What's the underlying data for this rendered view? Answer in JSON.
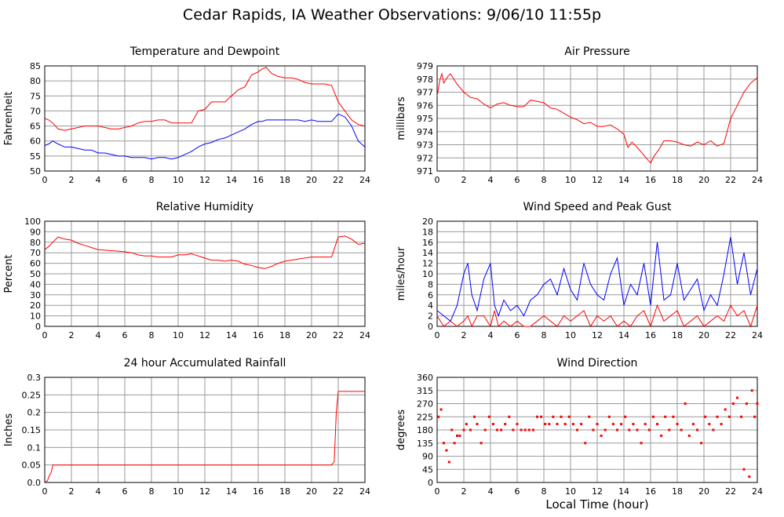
{
  "page": {
    "title": "Cedar Rapids, IA Weather Observations: 9/06/10 11:55p",
    "xlabel": "Local Time (hour)"
  },
  "chart_data": [
    {
      "id": "temp",
      "type": "line",
      "title": "Temperature and Dewpoint",
      "ylabel": "Fahrenheit",
      "xlim": [
        0,
        24
      ],
      "ylim": [
        50,
        85
      ],
      "x_ticks": [
        0,
        2,
        4,
        6,
        8,
        10,
        12,
        14,
        16,
        18,
        20,
        22,
        24
      ],
      "y_ticks": [
        50,
        55,
        60,
        65,
        70,
        75,
        80,
        85
      ],
      "grid": true,
      "x": [
        0,
        0.3,
        0.6,
        1,
        1.5,
        2,
        2.5,
        3,
        3.5,
        4,
        4.5,
        5,
        5.5,
        6,
        6.5,
        7,
        7.5,
        8,
        8.5,
        9,
        9.5,
        10,
        10.5,
        11,
        11.5,
        12,
        12.5,
        13,
        13.5,
        14,
        14.5,
        15,
        15.5,
        16,
        16.3,
        16.6,
        17,
        17.5,
        18,
        18.5,
        19,
        19.5,
        20,
        20.5,
        21,
        21.5,
        22,
        22.5,
        23,
        23.5,
        24
      ],
      "series": [
        {
          "color": "#ff0000",
          "values": [
            67.5,
            67,
            66,
            64,
            63.5,
            64,
            64.5,
            65,
            65,
            65,
            64.5,
            64,
            64,
            64.5,
            65,
            66,
            66.5,
            66.5,
            67,
            67,
            66,
            66,
            66,
            66,
            70,
            70.5,
            73,
            73,
            73,
            75,
            77,
            78,
            82,
            83,
            84,
            84.5,
            82.5,
            81.5,
            81,
            81,
            80.5,
            79.5,
            79,
            79,
            79,
            78.5,
            73,
            70,
            67,
            65.5,
            65
          ]
        },
        {
          "color": "#0000ff",
          "values": [
            58.5,
            59,
            60,
            59,
            58,
            58,
            57.5,
            57,
            57,
            56,
            56,
            55.5,
            55,
            55,
            54.5,
            54.5,
            54.5,
            54,
            54.5,
            54.5,
            54,
            54.5,
            55.5,
            56.5,
            58,
            59,
            59.5,
            60.5,
            61,
            62,
            63,
            64,
            65.5,
            66.5,
            66.5,
            67,
            67,
            67,
            67,
            67,
            67,
            66.5,
            67,
            66.5,
            66.5,
            66.5,
            69,
            68,
            65,
            60,
            58
          ]
        }
      ]
    },
    {
      "id": "pressure",
      "type": "line",
      "title": "Air Pressure",
      "ylabel": "millibars",
      "xlim": [
        0,
        24
      ],
      "ylim": [
        971,
        979
      ],
      "x_ticks": [
        0,
        2,
        4,
        6,
        8,
        10,
        12,
        14,
        16,
        18,
        20,
        22,
        24
      ],
      "y_ticks": [
        971,
        972,
        973,
        974,
        975,
        976,
        977,
        978,
        979
      ],
      "grid": true,
      "x": [
        0,
        0.2,
        0.35,
        0.5,
        0.8,
        1,
        1.5,
        2,
        2.5,
        3,
        3.5,
        4,
        4.5,
        5,
        5.5,
        6,
        6.5,
        7,
        7.5,
        8,
        8.5,
        9,
        9.5,
        10,
        10.5,
        11,
        11.5,
        12,
        12.5,
        13,
        13.5,
        14,
        14.3,
        14.6,
        15,
        15.5,
        16,
        16.3,
        16.6,
        17,
        17.5,
        18,
        18.5,
        19,
        19.5,
        20,
        20.5,
        21,
        21.5,
        22,
        22.5,
        23,
        23.5,
        24
      ],
      "series": [
        {
          "color": "#ff0000",
          "values": [
            976.7,
            977.9,
            978.4,
            977.7,
            978.2,
            978.4,
            977.6,
            977,
            976.6,
            976.5,
            976.1,
            975.8,
            976.1,
            976.2,
            976,
            975.9,
            975.9,
            976.4,
            976.3,
            976.2,
            975.8,
            975.7,
            975.4,
            975.1,
            974.9,
            974.6,
            974.7,
            974.4,
            974.4,
            974.5,
            974.2,
            973.8,
            972.8,
            973.2,
            972.8,
            972.2,
            971.6,
            972.2,
            972.6,
            973.3,
            973.3,
            973.2,
            973,
            972.9,
            973.2,
            973,
            973.3,
            972.9,
            973.1,
            975,
            976,
            977,
            977.7,
            978.1
          ]
        }
      ]
    },
    {
      "id": "rh",
      "type": "line",
      "title": "Relative Humidity",
      "ylabel": "Percent",
      "xlim": [
        0,
        24
      ],
      "ylim": [
        0,
        100
      ],
      "x_ticks": [
        0,
        2,
        4,
        6,
        8,
        10,
        12,
        14,
        16,
        18,
        20,
        22,
        24
      ],
      "y_ticks": [
        0,
        10,
        20,
        30,
        40,
        50,
        60,
        70,
        80,
        90,
        100
      ],
      "grid": true,
      "x": [
        0,
        0.3,
        0.6,
        1,
        1.5,
        2,
        2.5,
        3,
        3.5,
        4,
        5,
        6,
        6.5,
        7,
        7.5,
        8,
        8.5,
        9,
        9.5,
        10,
        10.5,
        11,
        11.5,
        12,
        12.5,
        13,
        13.5,
        14,
        14.5,
        15,
        15.5,
        16,
        16.5,
        17,
        17.5,
        18,
        18.5,
        19,
        19.5,
        20,
        20.5,
        21,
        21.5,
        22,
        22.5,
        23,
        23.5,
        24
      ],
      "series": [
        {
          "color": "#ff0000",
          "values": [
            73,
            76,
            80,
            85,
            83,
            82,
            79,
            77,
            75,
            73,
            72,
            71,
            70,
            68,
            67,
            67,
            66,
            66,
            66,
            68,
            68,
            69,
            67,
            65,
            63,
            63,
            62,
            63,
            62,
            59,
            58,
            56,
            55,
            57,
            60,
            62,
            63,
            64,
            65,
            66,
            66,
            66,
            66,
            85,
            86,
            83,
            78,
            79
          ]
        }
      ]
    },
    {
      "id": "wind",
      "type": "line",
      "title": "Wind Speed and Peak Gust",
      "ylabel": "miles/hour",
      "xlim": [
        0,
        24
      ],
      "ylim": [
        0,
        20
      ],
      "x_ticks": [
        0,
        2,
        4,
        6,
        8,
        10,
        12,
        14,
        16,
        18,
        20,
        22,
        24
      ],
      "y_ticks": [
        0,
        2,
        4,
        6,
        8,
        10,
        12,
        14,
        16,
        18,
        20
      ],
      "grid": true,
      "x": [
        0,
        0.5,
        1,
        1.5,
        2,
        2.3,
        2.6,
        3,
        3.5,
        4,
        4.3,
        4.6,
        5,
        5.5,
        6,
        6.5,
        7,
        7.5,
        8,
        8.5,
        9,
        9.5,
        10,
        10.5,
        11,
        11.5,
        12,
        12.5,
        13,
        13.5,
        14,
        14.5,
        15,
        15.5,
        16,
        16.5,
        17,
        17.5,
        18,
        18.5,
        19,
        19.5,
        20,
        20.5,
        21,
        21.5,
        22,
        22.5,
        23,
        23.5,
        24
      ],
      "series": [
        {
          "color": "#0000ff",
          "values": [
            3,
            2,
            1,
            4,
            10,
            12,
            6,
            3,
            9,
            12,
            4,
            2,
            5,
            3,
            4,
            2,
            5,
            6,
            8,
            9,
            6,
            11,
            7,
            5,
            12,
            8,
            6,
            5,
            10,
            13,
            4,
            8,
            6,
            12,
            4,
            16,
            5,
            6,
            12,
            5,
            7,
            9,
            3,
            6,
            4,
            10,
            17,
            8,
            14,
            6,
            11
          ]
        },
        {
          "color": "#ff0000",
          "values": [
            2,
            0,
            1,
            0,
            1,
            2,
            0,
            2,
            2,
            0,
            3,
            0,
            1,
            0,
            1,
            0,
            0,
            1,
            2,
            1,
            0,
            2,
            1,
            2,
            3,
            0,
            2,
            1,
            2,
            0,
            1,
            0,
            2,
            3,
            0,
            4,
            1,
            2,
            3,
            0,
            1,
            2,
            0,
            1,
            2,
            1,
            4,
            2,
            3,
            0,
            4
          ]
        }
      ]
    },
    {
      "id": "rain",
      "type": "line",
      "title": "24 hour Accumulated Rainfall",
      "ylabel": "Inches",
      "xlim": [
        0,
        24
      ],
      "ylim": [
        0,
        0.3
      ],
      "x_ticks": [
        0,
        2,
        4,
        6,
        8,
        10,
        12,
        14,
        16,
        18,
        20,
        22,
        24
      ],
      "y_ticks": [
        0.0,
        0.05,
        0.1,
        0.15,
        0.2,
        0.25,
        0.3
      ],
      "y_tick_labels": [
        "0.0",
        "0.05",
        "0.1",
        "0.15",
        "0.2",
        "0.25",
        "0.3"
      ],
      "grid": true,
      "x": [
        0,
        0.2,
        0.35,
        0.5,
        0.6,
        21.5,
        21.7,
        21.85,
        22,
        24
      ],
      "series": [
        {
          "color": "#ff0000",
          "values": [
            0,
            0.005,
            0.02,
            0.03,
            0.05,
            0.05,
            0.06,
            0.2,
            0.26,
            0.26
          ]
        }
      ]
    },
    {
      "id": "winddir",
      "type": "scatter",
      "title": "Wind Direction",
      "ylabel": "degrees",
      "xlim": [
        0,
        24
      ],
      "ylim": [
        0,
        360
      ],
      "x_ticks": [
        0,
        2,
        4,
        6,
        8,
        10,
        12,
        14,
        16,
        18,
        20,
        22,
        24
      ],
      "y_ticks": [
        0,
        45,
        90,
        135,
        180,
        225,
        270,
        315,
        360
      ],
      "grid": true,
      "series": [
        {
          "color": "#ff0000",
          "x": [
            0.1,
            0.3,
            0.5,
            0.7,
            0.9,
            1.1,
            1.3,
            1.5,
            1.7,
            2,
            2.2,
            2.5,
            2.8,
            3,
            3.3,
            3.6,
            3.9,
            4.2,
            4.5,
            4.8,
            5.1,
            5.4,
            5.7,
            6,
            6.3,
            6.6,
            6.9,
            7.2,
            7.5,
            7.8,
            8.1,
            8.4,
            8.7,
            9,
            9.3,
            9.6,
            9.9,
            10.2,
            10.5,
            10.8,
            11.1,
            11.4,
            11.7,
            12,
            12.3,
            12.6,
            12.9,
            13.2,
            13.5,
            13.8,
            14.1,
            14.4,
            14.7,
            15,
            15.3,
            15.6,
            15.9,
            16.2,
            16.5,
            16.8,
            17.1,
            17.4,
            17.7,
            18,
            18.3,
            18.6,
            18.9,
            19.2,
            19.5,
            19.8,
            20.1,
            20.4,
            20.7,
            21,
            21.3,
            21.6,
            21.9,
            22.2,
            22.5,
            22.8,
            23,
            23.2,
            23.4,
            23.6,
            23.8,
            24
          ],
          "y": [
            225,
            250,
            135,
            110,
            70,
            180,
            135,
            160,
            160,
            180,
            200,
            180,
            225,
            200,
            135,
            180,
            225,
            200,
            180,
            180,
            200,
            225,
            180,
            200,
            180,
            180,
            180,
            180,
            225,
            225,
            200,
            200,
            225,
            200,
            225,
            200,
            225,
            200,
            180,
            200,
            135,
            225,
            180,
            200,
            160,
            180,
            225,
            200,
            180,
            200,
            225,
            180,
            200,
            180,
            135,
            200,
            180,
            225,
            200,
            160,
            225,
            180,
            225,
            200,
            180,
            270,
            160,
            200,
            180,
            135,
            225,
            200,
            180,
            225,
            200,
            250,
            225,
            270,
            290,
            225,
            45,
            270,
            20,
            315,
            225,
            270
          ]
        }
      ]
    }
  ]
}
